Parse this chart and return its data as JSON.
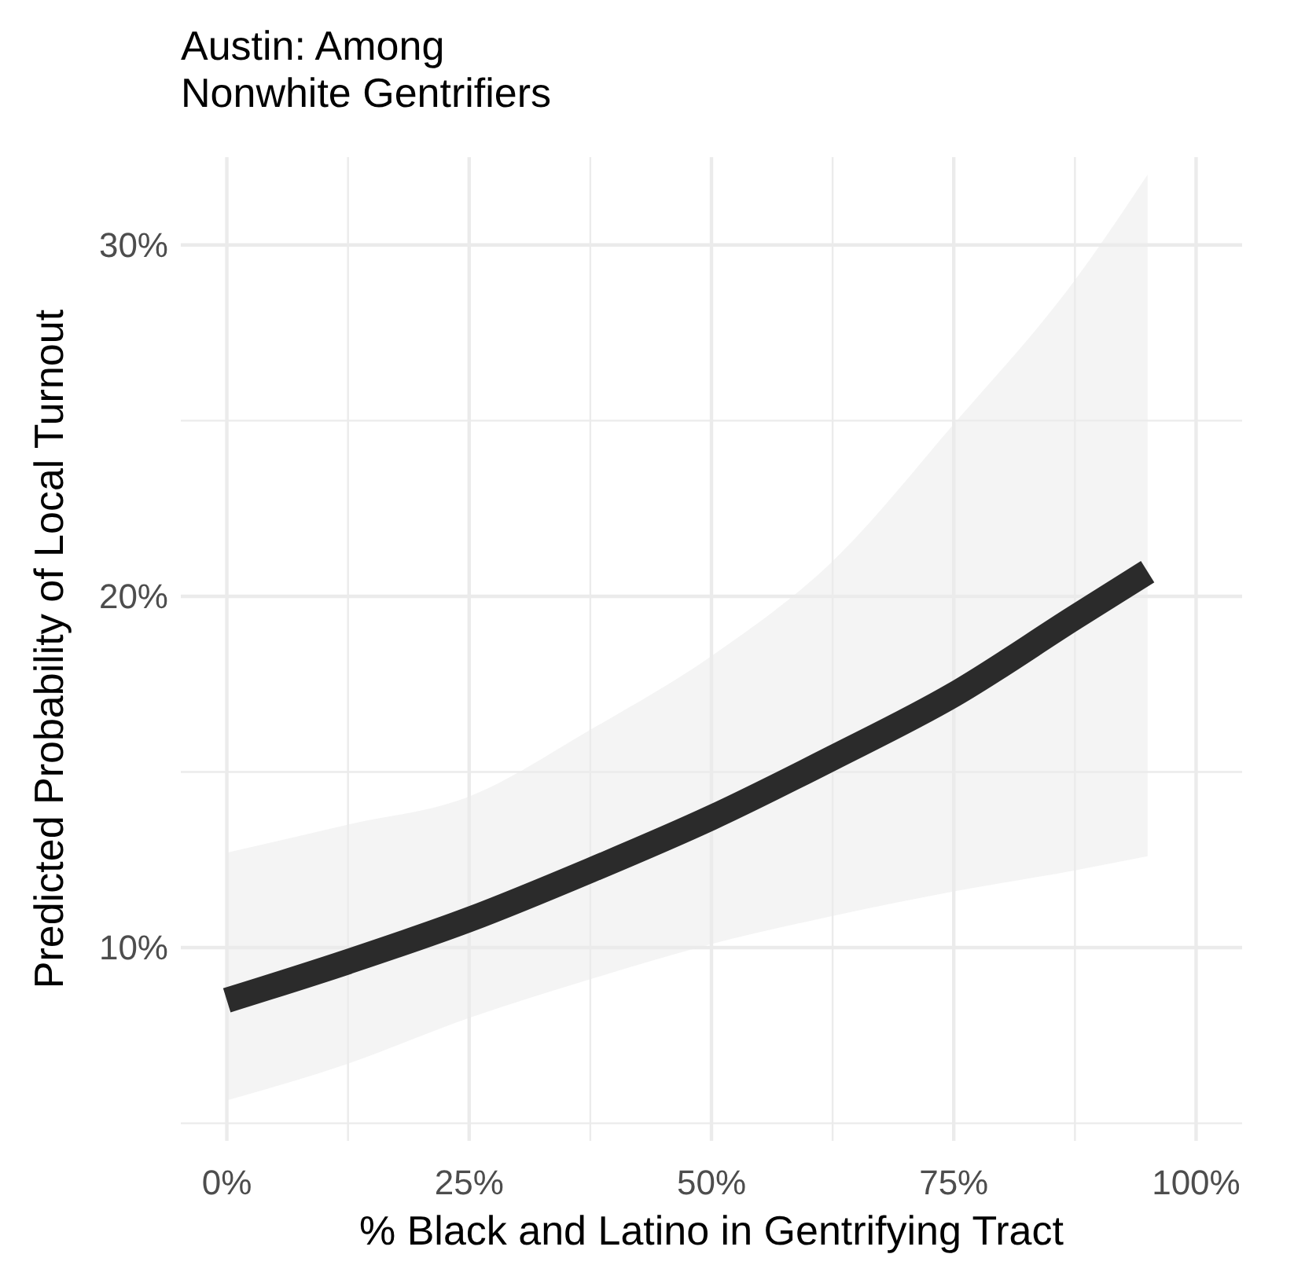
{
  "chart_data": {
    "type": "line",
    "title": "Austin: Among\nNonwhite Gentrifiers",
    "xlabel": "% Black and Latino in Gentrifying Tract",
    "ylabel": "Predicted Probability of Local Turnout",
    "x": [
      0,
      12.5,
      25,
      37.5,
      50,
      62.5,
      75,
      87.5,
      95
    ],
    "series": [
      {
        "color": "#2b2b2b",
        "values": [
          8.5,
          9.6,
          10.8,
          12.2,
          13.7,
          15.4,
          17.2,
          19.4,
          20.7
        ],
        "lower": [
          5.65,
          6.7,
          8.0,
          9.1,
          10.1,
          10.9,
          11.6,
          12.2,
          12.6
        ],
        "upper": [
          12.7,
          13.5,
          14.3,
          16.2,
          18.3,
          21.0,
          24.9,
          29.0,
          32.0
        ]
      }
    ],
    "xlim": [
      -4.75,
      104.75
    ],
    "ylim": [
      4.5,
      32.5
    ],
    "xticks": [
      {
        "value": 0,
        "label": "0%"
      },
      {
        "value": 12.5,
        "label": null
      },
      {
        "value": 25,
        "label": "25%"
      },
      {
        "value": 37.5,
        "label": null
      },
      {
        "value": 50,
        "label": "50%"
      },
      {
        "value": 62.5,
        "label": null
      },
      {
        "value": 75,
        "label": "75%"
      },
      {
        "value": 87.5,
        "label": null
      },
      {
        "value": 100,
        "label": "100%"
      }
    ],
    "yticks": [
      {
        "value": 5,
        "label": null
      },
      {
        "value": 10,
        "label": "10%"
      },
      {
        "value": 15,
        "label": null
      },
      {
        "value": 20,
        "label": "20%"
      },
      {
        "value": 25,
        "label": null
      },
      {
        "value": 30,
        "label": "30%"
      }
    ],
    "grid": true,
    "marker": "none",
    "line_style": "solid"
  }
}
